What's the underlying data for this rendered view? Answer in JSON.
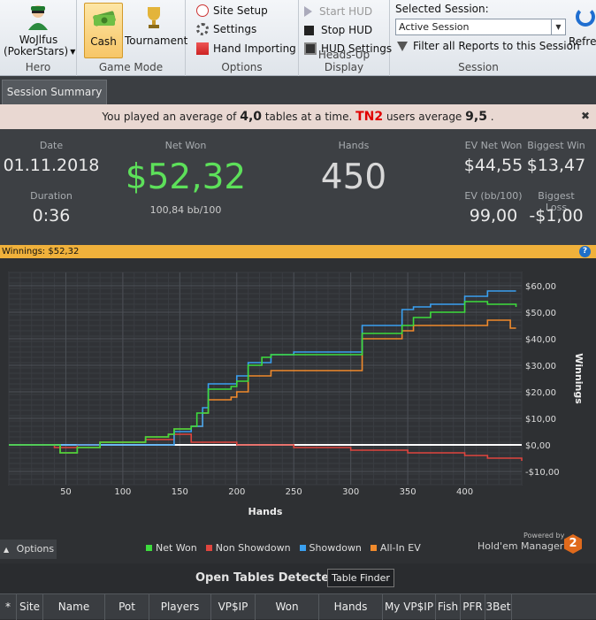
{
  "ribbon": {
    "hero": {
      "name": "WoJlfus",
      "site": "(PokerStars)",
      "group": "Hero"
    },
    "game_mode": {
      "cash": "Cash",
      "tournament": "Tournament",
      "group": "Game Mode"
    },
    "options": {
      "site_setup": "Site Setup",
      "settings": "Settings",
      "hand_importing": "Hand Importing",
      "group": "Options"
    },
    "hud": {
      "start": "Start HUD",
      "stop": "Stop HUD",
      "settings": "HUD Settings",
      "group": "Heads-Up Display"
    },
    "session": {
      "label": "Selected Session:",
      "value": "Active Session",
      "filter": "Filter all Reports to this Session",
      "group": "Session"
    },
    "refresh": "Refres"
  },
  "tab": "Session Summary",
  "notice": {
    "prefix": "You played an average of",
    "tables": "4,0",
    "mid": "tables at a time.",
    "tag": "TN2",
    "mid2": "users average",
    "avg": "9,5",
    "suffix": "."
  },
  "stats": {
    "date_label": "Date",
    "date": "01.11.2018",
    "duration_label": "Duration",
    "duration": "0:36",
    "netwon_label": "Net Won",
    "netwon": "$52,32",
    "bb100": "100,84 bb/100",
    "hands_label": "Hands",
    "hands": "450",
    "evnet_label": "EV Net Won",
    "evnet": "$44,55",
    "bigwin_label": "Biggest Win",
    "bigwin": "$13,47",
    "evbb_label": "EV (bb/100)",
    "evbb": "99,00",
    "bigloss_label": "Biggest Loss",
    "bigloss": "-$1,00"
  },
  "winnings_bar": "Winnings: $52,32",
  "options_btn": "Options",
  "powered": {
    "by": "Powered by",
    "brand": "Hold'em Manager",
    "ver": "2"
  },
  "open_tables": {
    "title": "Open Tables Detected",
    "finder": "Table Finder",
    "columns": [
      "*",
      "Site",
      "Name",
      "Pot",
      "Players",
      "VP$IP",
      "Won",
      "Hands",
      "My VP$IP",
      "Fish",
      "PFR",
      "3Bet"
    ]
  },
  "colors": {
    "net": "#3ddc3d",
    "nonsd": "#e0453e",
    "sd": "#3aa0f0",
    "allin": "#f08a2c"
  },
  "chart_data": {
    "type": "line",
    "xlabel": "Hands",
    "ylabel": "Winnings",
    "xlim": [
      0,
      450
    ],
    "ylim": [
      -15,
      65
    ],
    "xticks": [
      50,
      100,
      150,
      200,
      250,
      300,
      350,
      400
    ],
    "yticks": [
      60,
      50,
      40,
      30,
      20,
      10,
      0,
      -10
    ],
    "ytick_labels": [
      "$60,00",
      "$50,00",
      "$40,00",
      "$30,00",
      "$20,00",
      "$10,00",
      "$0,00",
      "-$10,00"
    ],
    "legend": [
      "Net Won",
      "Non Showdown",
      "Showdown",
      "All-In EV"
    ],
    "series": [
      {
        "name": "Net Won",
        "x": [
          0,
          20,
          45,
          60,
          80,
          100,
          120,
          140,
          145,
          160,
          165,
          175,
          195,
          200,
          210,
          222,
          230,
          245,
          265,
          290,
          305,
          310,
          330,
          345,
          355,
          370,
          390,
          398,
          400,
          420,
          440,
          445
        ],
        "y": [
          0,
          0,
          -3,
          -1,
          1,
          1,
          3,
          4,
          6,
          7,
          12,
          21,
          22,
          24,
          30,
          33,
          34,
          34,
          34,
          34,
          34,
          42,
          42,
          45,
          48,
          50,
          50,
          50,
          54,
          53,
          53,
          52
        ]
      },
      {
        "name": "Non Showdown",
        "x": [
          0,
          40,
          60,
          80,
          100,
          120,
          140,
          145,
          160,
          200,
          250,
          300,
          350,
          400,
          420,
          450
        ],
        "y": [
          0,
          -1,
          0,
          1,
          1,
          2,
          2,
          4,
          1,
          0,
          -1,
          -2,
          -3,
          -4,
          -5,
          -6
        ]
      },
      {
        "name": "Showdown",
        "x": [
          0,
          140,
          145,
          160,
          170,
          175,
          195,
          200,
          210,
          230,
          250,
          300,
          310,
          330,
          345,
          355,
          370,
          400,
          420,
          445
        ],
        "y": [
          0,
          0,
          5,
          7,
          14,
          23,
          23,
          26,
          31,
          34,
          35,
          35,
          45,
          45,
          51,
          52,
          53,
          56,
          58,
          58
        ]
      },
      {
        "name": "All-In EV",
        "x": [
          0,
          20,
          45,
          60,
          80,
          100,
          120,
          140,
          145,
          160,
          170,
          175,
          195,
          200,
          210,
          230,
          245,
          265,
          290,
          305,
          310,
          330,
          345,
          355,
          370,
          390,
          398,
          400,
          420,
          440,
          445
        ],
        "y": [
          0,
          0,
          -3,
          -1,
          1,
          1,
          3,
          4,
          6,
          7,
          12,
          17,
          18,
          20,
          26,
          28,
          28,
          28,
          28,
          28,
          40,
          40,
          43,
          45,
          45,
          45,
          45,
          45,
          47,
          44,
          44
        ]
      }
    ]
  }
}
